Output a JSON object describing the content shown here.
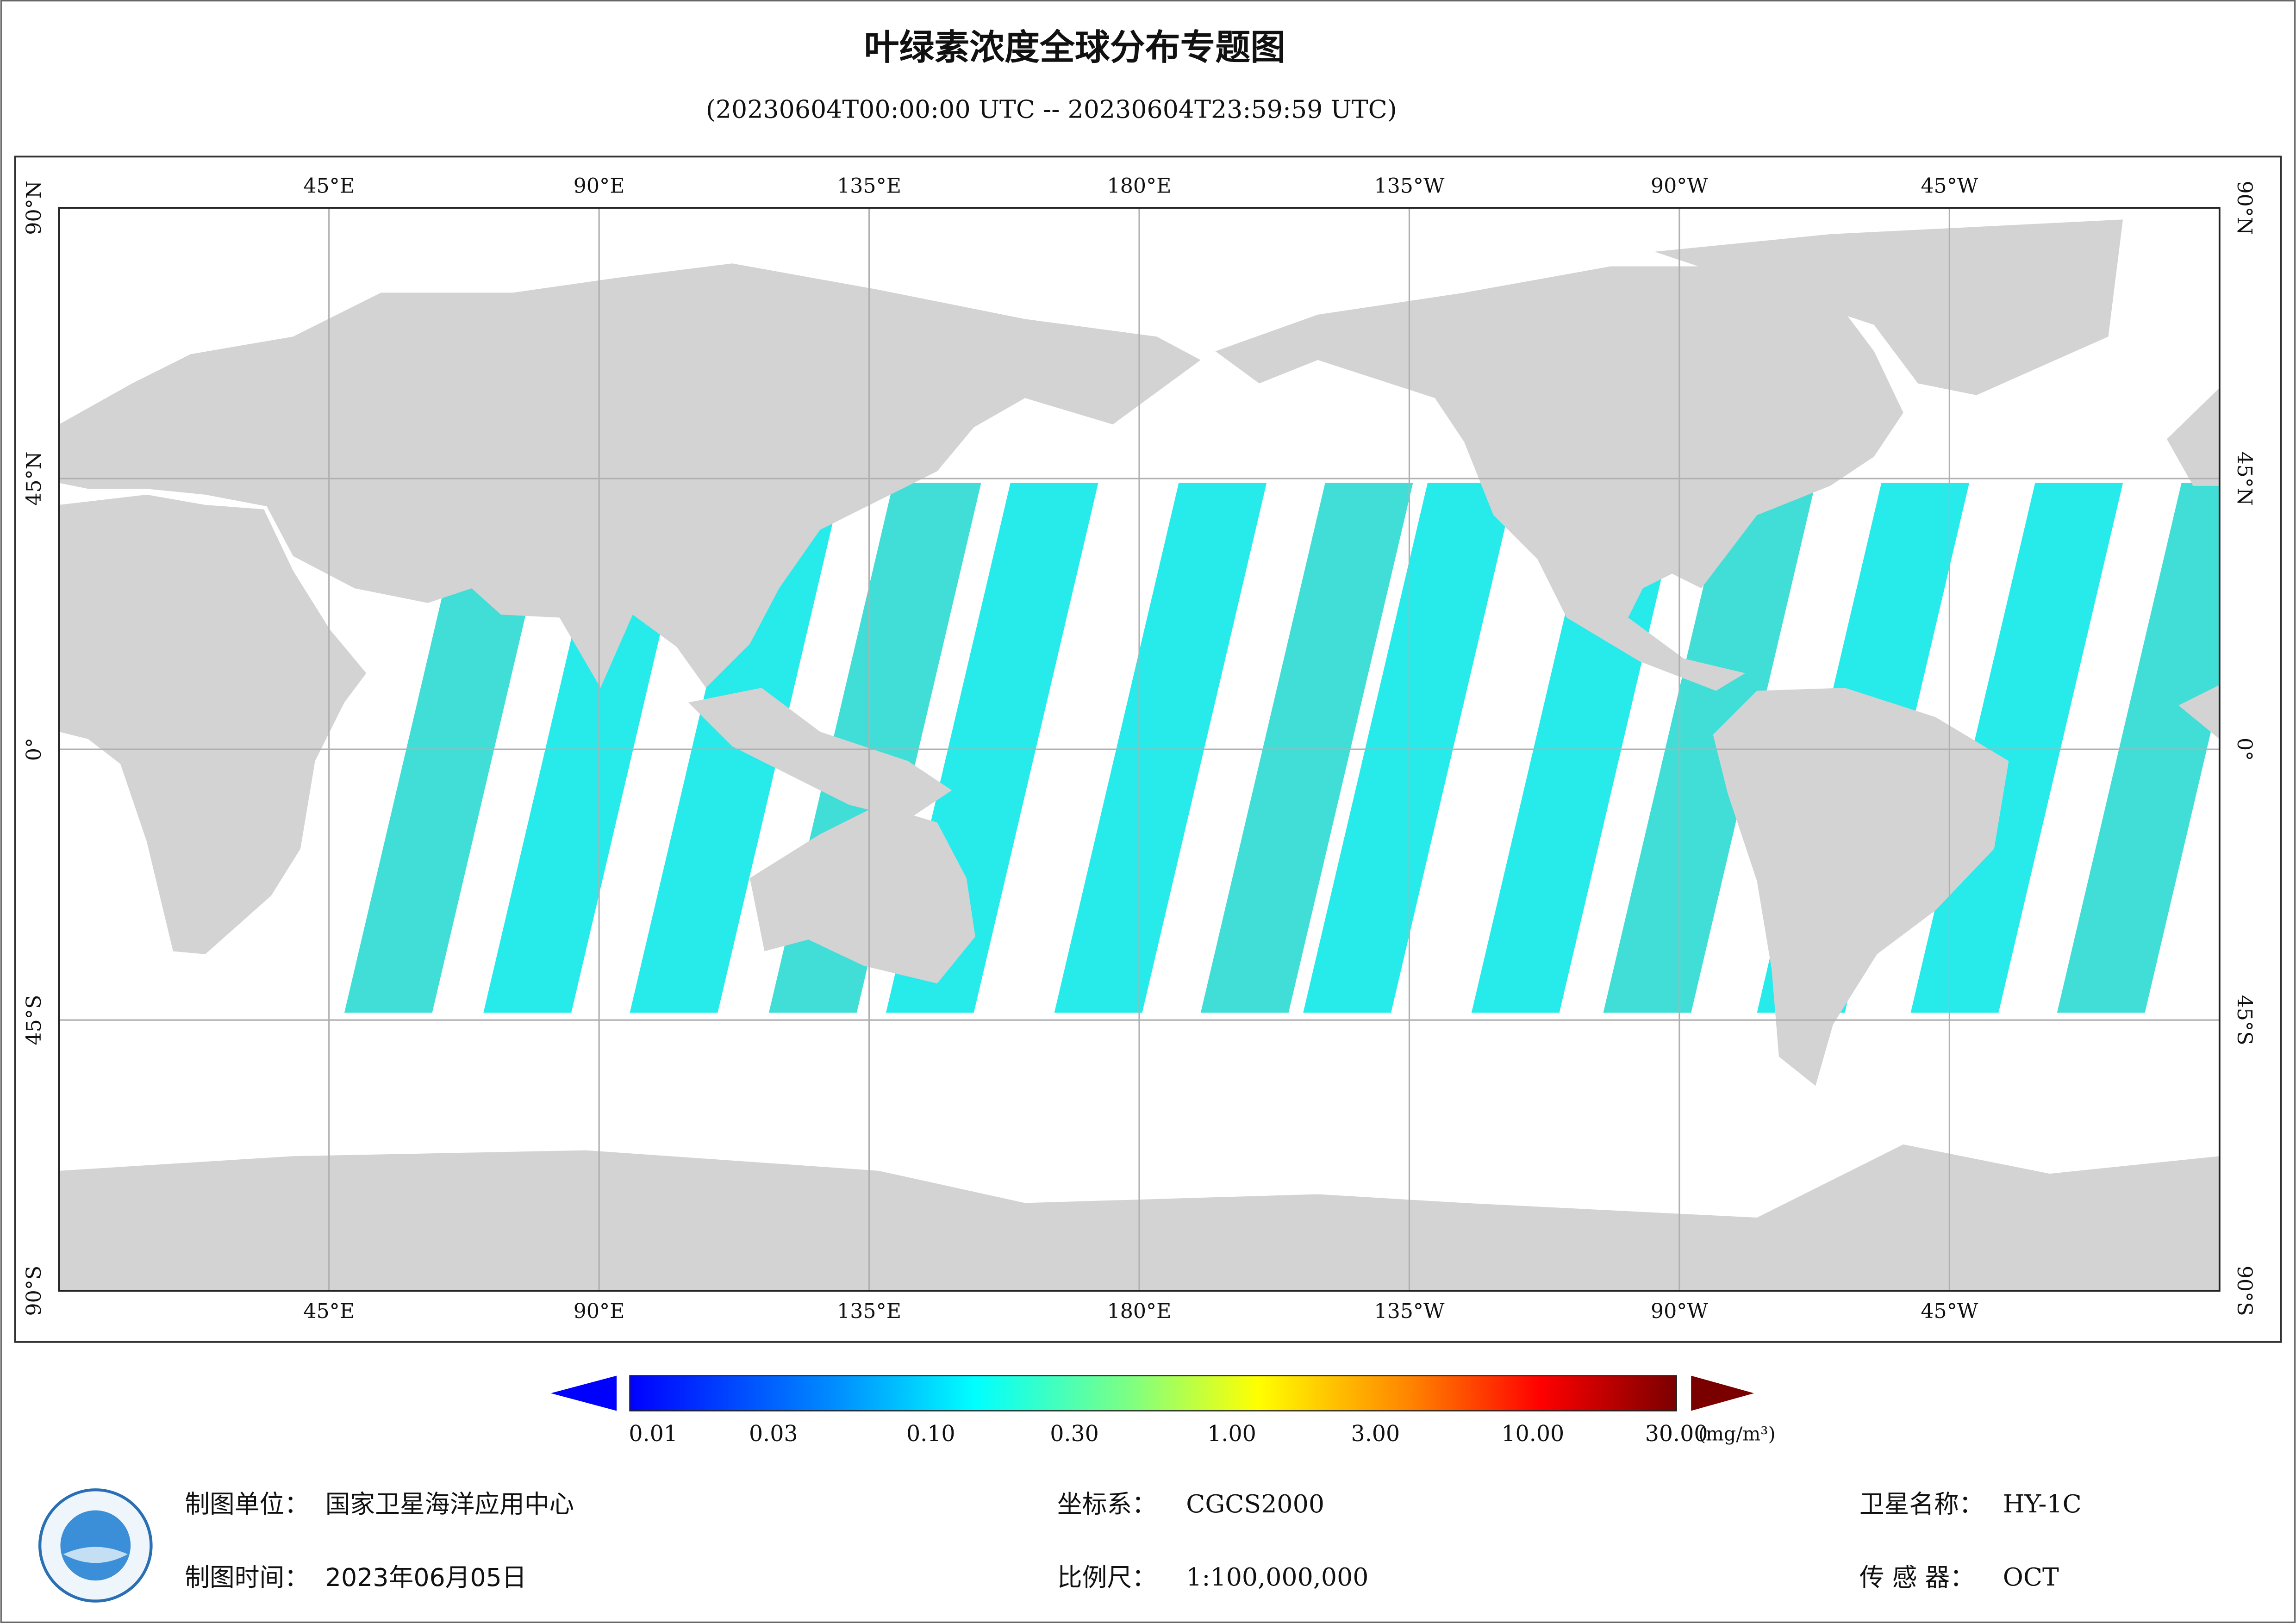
{
  "title": "叶绿素浓度全球分布专题图",
  "subtitle": "(20230604T00:00:00 UTC -- 20230604T23:59:59 UTC)",
  "map": {
    "lon_labels": [
      "45°E",
      "90°E",
      "135°E",
      "180°E",
      "135°W",
      "90°W",
      "45°W"
    ],
    "lat_labels": [
      "90°N",
      "45°N",
      "0°",
      "45°S",
      "90°S"
    ]
  },
  "colorbar": {
    "ticks": [
      {
        "value": 0.01,
        "label": "0.01"
      },
      {
        "value": 0.03,
        "label": "0.03"
      },
      {
        "value": 0.1,
        "label": "0.10"
      },
      {
        "value": 0.3,
        "label": "0.30"
      },
      {
        "value": 1,
        "label": "1.00"
      },
      {
        "value": 3,
        "label": "3.00"
      },
      {
        "value": 10,
        "label": "10.00"
      },
      {
        "value": 30,
        "label": "30.00"
      }
    ],
    "unit": "(mg/m³)"
  },
  "footer": {
    "unit": {
      "label": "制图单位：",
      "value": "国家卫星海洋应用中心"
    },
    "date": {
      "label": "制图时间：",
      "value": "2023年06月05日"
    },
    "crs": {
      "label": "坐标系：",
      "value": "CGCS2000"
    },
    "scale": {
      "label": "比例尺：",
      "value": "1:100,000,000"
    },
    "satellite": {
      "label": "卫星名称：",
      "value": "HY-1C"
    },
    "sensor": {
      "label": "传 感 器：",
      "value": "OCT"
    }
  }
}
